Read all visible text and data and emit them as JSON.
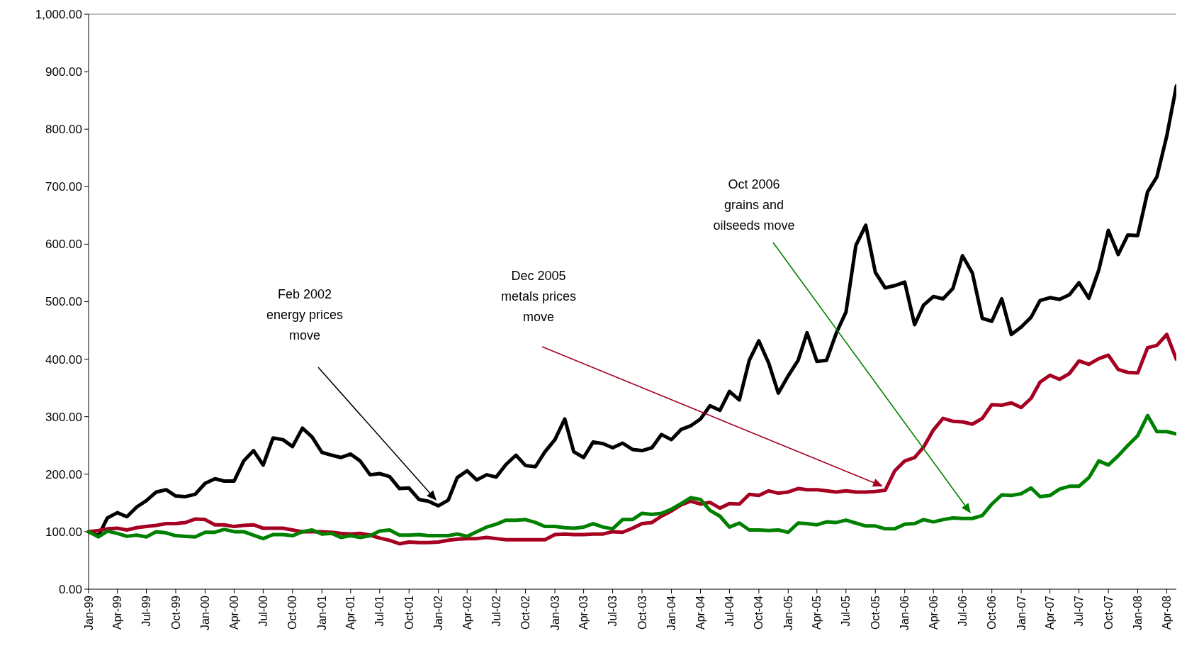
{
  "chart_data": {
    "type": "line",
    "x": [
      "1999-01",
      "1999-02",
      "1999-03",
      "1999-04",
      "1999-05",
      "1999-06",
      "1999-07",
      "1999-08",
      "1999-09",
      "1999-10",
      "1999-11",
      "1999-12",
      "2000-01",
      "2000-02",
      "2000-03",
      "2000-04",
      "2000-05",
      "2000-06",
      "2000-07",
      "2000-08",
      "2000-09",
      "2000-10",
      "2000-11",
      "2000-12",
      "2001-01",
      "2001-02",
      "2001-03",
      "2001-04",
      "2001-05",
      "2001-06",
      "2001-07",
      "2001-08",
      "2001-09",
      "2001-10",
      "2001-11",
      "2001-12",
      "2002-01",
      "2002-02",
      "2002-03",
      "2002-04",
      "2002-05",
      "2002-06",
      "2002-07",
      "2002-08",
      "2002-09",
      "2002-10",
      "2002-11",
      "2002-12",
      "2003-01",
      "2003-02",
      "2003-03",
      "2003-04",
      "2003-05",
      "2003-06",
      "2003-07",
      "2003-08",
      "2003-09",
      "2003-10",
      "2003-11",
      "2003-12",
      "2004-01",
      "2004-02",
      "2004-03",
      "2004-04",
      "2004-05",
      "2004-06",
      "2004-07",
      "2004-08",
      "2004-09",
      "2004-10",
      "2004-11",
      "2004-12",
      "2005-01",
      "2005-02",
      "2005-03",
      "2005-04",
      "2005-05",
      "2005-06",
      "2005-07",
      "2005-08",
      "2005-09",
      "2005-10",
      "2005-11",
      "2005-12",
      "2006-01",
      "2006-02",
      "2006-03",
      "2006-04",
      "2006-05",
      "2006-06",
      "2006-07",
      "2006-08",
      "2006-09",
      "2006-10",
      "2006-11",
      "2006-12",
      "2007-01",
      "2007-02",
      "2007-03",
      "2007-04",
      "2007-05",
      "2007-06",
      "2007-07",
      "2007-08",
      "2007-09",
      "2007-10",
      "2007-11",
      "2007-12",
      "2008-01",
      "2008-02",
      "2008-03",
      "2008-04",
      "2008-05"
    ],
    "series": [
      {
        "color": "#000000",
        "values": [
          100,
          93,
          124,
          133,
          126,
          143,
          154,
          169,
          173,
          162,
          161,
          165,
          184,
          192,
          188,
          188,
          223,
          241,
          216,
          263,
          260,
          248,
          280,
          265,
          238,
          233,
          229,
          235,
          223,
          199,
          201,
          196,
          175,
          176,
          156,
          153,
          145,
          155,
          194,
          206,
          190,
          199,
          195,
          217,
          233,
          215,
          213,
          239,
          260,
          296,
          239,
          229,
          256,
          253,
          246,
          254,
          243,
          241,
          246,
          269,
          260,
          278,
          284,
          296,
          319,
          311,
          344,
          329,
          398,
          432,
          393,
          341,
          371,
          398,
          446,
          396,
          398,
          446,
          482,
          598,
          633,
          551,
          524,
          528,
          534,
          460,
          494,
          509,
          505,
          523,
          580,
          550,
          471,
          466,
          505,
          443,
          456,
          473,
          502,
          507,
          504,
          512,
          533,
          506,
          555,
          624,
          582,
          616,
          615,
          691,
          717,
          788,
          875
        ]
      },
      {
        "color": "#a50021",
        "values": [
          100,
          102,
          105,
          106,
          103,
          107,
          109,
          111,
          114,
          114,
          116,
          122,
          121,
          112,
          112,
          109,
          111,
          112,
          106,
          106,
          106,
          103,
          100,
          100,
          100,
          99,
          97,
          96,
          97,
          94,
          89,
          85,
          79,
          82,
          81,
          81,
          82,
          85,
          87,
          88,
          88,
          90,
          88,
          86,
          86,
          86,
          86,
          86,
          95,
          96,
          95,
          95,
          96,
          96,
          100,
          99,
          106,
          114,
          116,
          127,
          136,
          147,
          153,
          148,
          151,
          141,
          149,
          148,
          165,
          163,
          171,
          167,
          169,
          175,
          173,
          173,
          171,
          169,
          171,
          169,
          169,
          170,
          172,
          206,
          223,
          229,
          247,
          277,
          297,
          292,
          291,
          287,
          297,
          321,
          320,
          324,
          316,
          332,
          360,
          372,
          365,
          375,
          397,
          391,
          401,
          407,
          382,
          377,
          376,
          420,
          424,
          443,
          400
        ]
      },
      {
        "color": "#008000",
        "values": [
          100,
          91,
          101,
          97,
          92,
          94,
          91,
          100,
          98,
          93,
          92,
          91,
          99,
          99,
          104,
          100,
          100,
          94,
          88,
          95,
          95,
          93,
          100,
          103,
          96,
          97,
          90,
          93,
          90,
          93,
          101,
          103,
          94,
          94,
          95,
          93,
          93,
          93,
          96,
          92,
          100,
          108,
          113,
          120,
          120,
          121,
          116,
          109,
          109,
          107,
          106,
          108,
          114,
          108,
          105,
          121,
          121,
          132,
          130,
          132,
          139,
          149,
          159,
          156,
          137,
          127,
          108,
          115,
          103,
          103,
          102,
          103,
          99,
          115,
          114,
          112,
          117,
          116,
          120,
          115,
          110,
          110,
          105,
          105,
          113,
          114,
          121,
          117,
          121,
          124,
          123,
          123,
          128,
          148,
          164,
          163,
          166,
          176,
          161,
          163,
          174,
          179,
          179,
          194,
          223,
          216,
          232,
          250,
          267,
          302,
          274,
          274,
          270
        ]
      }
    ],
    "xlim": [
      "1999-01",
      "2008-05"
    ],
    "ylim": [
      0,
      1000
    ],
    "yticks": [
      {
        "value": 0,
        "label": "0.00"
      },
      {
        "value": 100,
        "label": "100.00"
      },
      {
        "value": 200,
        "label": "200.00"
      },
      {
        "value": 300,
        "label": "300.00"
      },
      {
        "value": 400,
        "label": "400.00"
      },
      {
        "value": 500,
        "label": "500.00"
      },
      {
        "value": 600,
        "label": "600.00"
      },
      {
        "value": 700,
        "label": "700.00"
      },
      {
        "value": 800,
        "label": "800.00"
      },
      {
        "value": 900,
        "label": "900.00"
      },
      {
        "value": 1000,
        "label": "1,000.00"
      }
    ],
    "xticks": [
      {
        "value": "1999-01",
        "label": "Jan-99"
      },
      {
        "value": "1999-04",
        "label": "Apr-99"
      },
      {
        "value": "1999-07",
        "label": "Jul-99"
      },
      {
        "value": "1999-10",
        "label": "Oct-99"
      },
      {
        "value": "2000-01",
        "label": "Jan-00"
      },
      {
        "value": "2000-04",
        "label": "Apr-00"
      },
      {
        "value": "2000-07",
        "label": "Jul-00"
      },
      {
        "value": "2000-10",
        "label": "Oct-00"
      },
      {
        "value": "2001-01",
        "label": "Jan-01"
      },
      {
        "value": "2001-04",
        "label": "Apr-01"
      },
      {
        "value": "2001-07",
        "label": "Jul-01"
      },
      {
        "value": "2001-10",
        "label": "Oct-01"
      },
      {
        "value": "2002-01",
        "label": "Jan-02"
      },
      {
        "value": "2002-04",
        "label": "Apr-02"
      },
      {
        "value": "2002-07",
        "label": "Jul-02"
      },
      {
        "value": "2002-10",
        "label": "Oct-02"
      },
      {
        "value": "2003-01",
        "label": "Jan-03"
      },
      {
        "value": "2003-04",
        "label": "Apr-03"
      },
      {
        "value": "2003-07",
        "label": "Jul-03"
      },
      {
        "value": "2003-10",
        "label": "Oct-03"
      },
      {
        "value": "2004-01",
        "label": "Jan-04"
      },
      {
        "value": "2004-04",
        "label": "Apr-04"
      },
      {
        "value": "2004-07",
        "label": "Jul-04"
      },
      {
        "value": "2004-10",
        "label": "Oct-04"
      },
      {
        "value": "2005-01",
        "label": "Jan-05"
      },
      {
        "value": "2005-04",
        "label": "Apr-05"
      },
      {
        "value": "2005-07",
        "label": "Jul-05"
      },
      {
        "value": "2005-10",
        "label": "Oct-05"
      },
      {
        "value": "2006-01",
        "label": "Jan-06"
      },
      {
        "value": "2006-04",
        "label": "Apr-06"
      },
      {
        "value": "2006-07",
        "label": "Jul-06"
      },
      {
        "value": "2006-10",
        "label": "Oct-06"
      },
      {
        "value": "2007-01",
        "label": "Jan-07"
      },
      {
        "value": "2007-04",
        "label": "Apr-07"
      },
      {
        "value": "2007-07",
        "label": "Jul-07"
      },
      {
        "value": "2007-10",
        "label": "Oct-07"
      },
      {
        "value": "2008-01",
        "label": "Jan-08"
      },
      {
        "value": "2008-04",
        "label": "Apr-08"
      }
    ],
    "annotations": [
      "Feb 2002\nenergy prices\nmove",
      "Dec 2005\nmetals prices\nmove",
      "Oct 2006\ngrains and\noilseeds move"
    ]
  }
}
